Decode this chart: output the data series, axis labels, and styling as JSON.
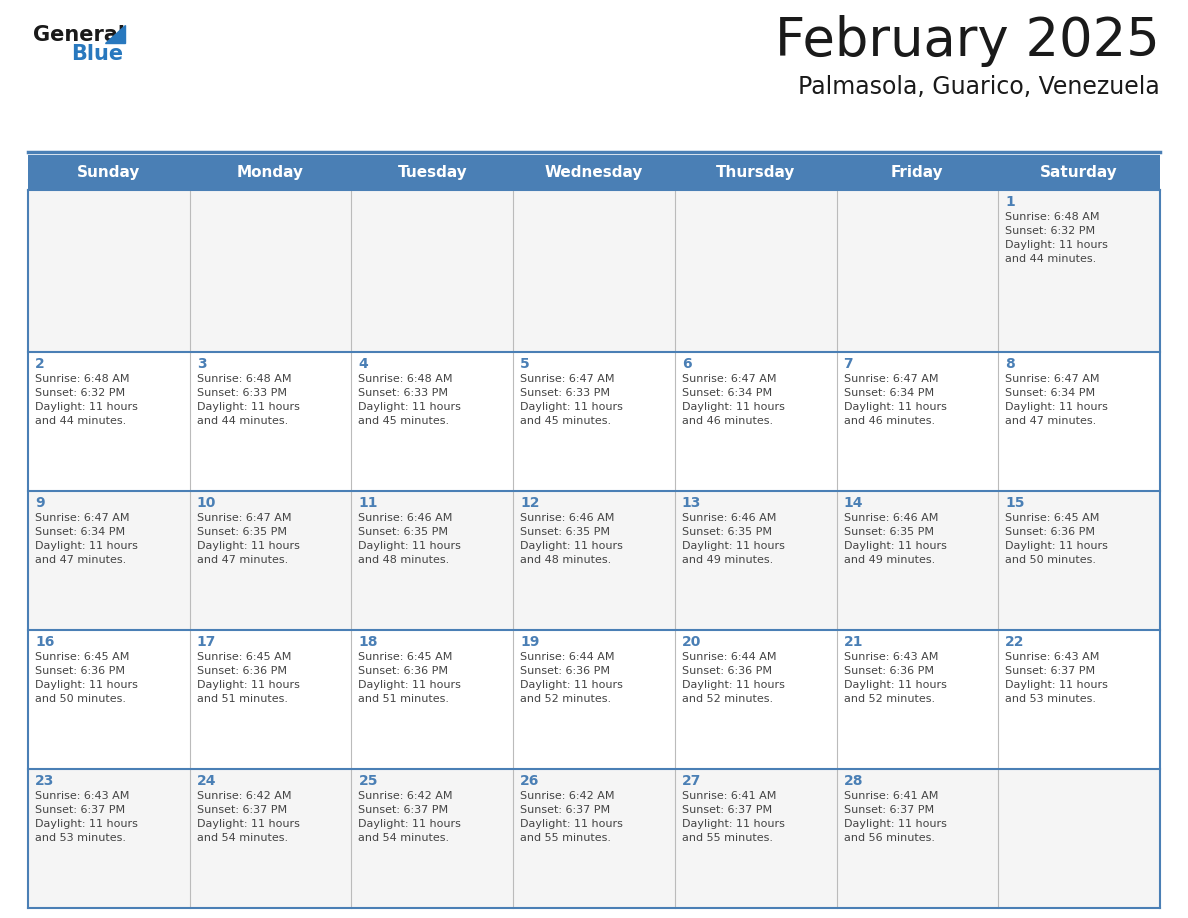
{
  "title": "February 2025",
  "subtitle": "Palmasola, Guarico, Venezuela",
  "days_of_week": [
    "Sunday",
    "Monday",
    "Tuesday",
    "Wednesday",
    "Thursday",
    "Friday",
    "Saturday"
  ],
  "header_bg": "#4a7fb5",
  "header_text": "#FFFFFF",
  "cell_bg": "#FFFFFF",
  "row_border_color": "#4a7fb5",
  "col_border_color": "#cccccc",
  "day_num_color": "#4a7fb5",
  "info_color": "#444444",
  "title_color": "#1a1a1a",
  "subtitle_color": "#1a1a1a",
  "logo_general_color": "#1a1a1a",
  "logo_blue_color": "#2878BE",
  "fig_width": 11.88,
  "fig_height": 9.18,
  "dpi": 100,
  "weeks": [
    [
      {
        "day": null,
        "info": ""
      },
      {
        "day": null,
        "info": ""
      },
      {
        "day": null,
        "info": ""
      },
      {
        "day": null,
        "info": ""
      },
      {
        "day": null,
        "info": ""
      },
      {
        "day": null,
        "info": ""
      },
      {
        "day": 1,
        "info": "Sunrise: 6:48 AM\nSunset: 6:32 PM\nDaylight: 11 hours\nand 44 minutes."
      }
    ],
    [
      {
        "day": 2,
        "info": "Sunrise: 6:48 AM\nSunset: 6:32 PM\nDaylight: 11 hours\nand 44 minutes."
      },
      {
        "day": 3,
        "info": "Sunrise: 6:48 AM\nSunset: 6:33 PM\nDaylight: 11 hours\nand 44 minutes."
      },
      {
        "day": 4,
        "info": "Sunrise: 6:48 AM\nSunset: 6:33 PM\nDaylight: 11 hours\nand 45 minutes."
      },
      {
        "day": 5,
        "info": "Sunrise: 6:47 AM\nSunset: 6:33 PM\nDaylight: 11 hours\nand 45 minutes."
      },
      {
        "day": 6,
        "info": "Sunrise: 6:47 AM\nSunset: 6:34 PM\nDaylight: 11 hours\nand 46 minutes."
      },
      {
        "day": 7,
        "info": "Sunrise: 6:47 AM\nSunset: 6:34 PM\nDaylight: 11 hours\nand 46 minutes."
      },
      {
        "day": 8,
        "info": "Sunrise: 6:47 AM\nSunset: 6:34 PM\nDaylight: 11 hours\nand 47 minutes."
      }
    ],
    [
      {
        "day": 9,
        "info": "Sunrise: 6:47 AM\nSunset: 6:34 PM\nDaylight: 11 hours\nand 47 minutes."
      },
      {
        "day": 10,
        "info": "Sunrise: 6:47 AM\nSunset: 6:35 PM\nDaylight: 11 hours\nand 47 minutes."
      },
      {
        "day": 11,
        "info": "Sunrise: 6:46 AM\nSunset: 6:35 PM\nDaylight: 11 hours\nand 48 minutes."
      },
      {
        "day": 12,
        "info": "Sunrise: 6:46 AM\nSunset: 6:35 PM\nDaylight: 11 hours\nand 48 minutes."
      },
      {
        "day": 13,
        "info": "Sunrise: 6:46 AM\nSunset: 6:35 PM\nDaylight: 11 hours\nand 49 minutes."
      },
      {
        "day": 14,
        "info": "Sunrise: 6:46 AM\nSunset: 6:35 PM\nDaylight: 11 hours\nand 49 minutes."
      },
      {
        "day": 15,
        "info": "Sunrise: 6:45 AM\nSunset: 6:36 PM\nDaylight: 11 hours\nand 50 minutes."
      }
    ],
    [
      {
        "day": 16,
        "info": "Sunrise: 6:45 AM\nSunset: 6:36 PM\nDaylight: 11 hours\nand 50 minutes."
      },
      {
        "day": 17,
        "info": "Sunrise: 6:45 AM\nSunset: 6:36 PM\nDaylight: 11 hours\nand 51 minutes."
      },
      {
        "day": 18,
        "info": "Sunrise: 6:45 AM\nSunset: 6:36 PM\nDaylight: 11 hours\nand 51 minutes."
      },
      {
        "day": 19,
        "info": "Sunrise: 6:44 AM\nSunset: 6:36 PM\nDaylight: 11 hours\nand 52 minutes."
      },
      {
        "day": 20,
        "info": "Sunrise: 6:44 AM\nSunset: 6:36 PM\nDaylight: 11 hours\nand 52 minutes."
      },
      {
        "day": 21,
        "info": "Sunrise: 6:43 AM\nSunset: 6:36 PM\nDaylight: 11 hours\nand 52 minutes."
      },
      {
        "day": 22,
        "info": "Sunrise: 6:43 AM\nSunset: 6:37 PM\nDaylight: 11 hours\nand 53 minutes."
      }
    ],
    [
      {
        "day": 23,
        "info": "Sunrise: 6:43 AM\nSunset: 6:37 PM\nDaylight: 11 hours\nand 53 minutes."
      },
      {
        "day": 24,
        "info": "Sunrise: 6:42 AM\nSunset: 6:37 PM\nDaylight: 11 hours\nand 54 minutes."
      },
      {
        "day": 25,
        "info": "Sunrise: 6:42 AM\nSunset: 6:37 PM\nDaylight: 11 hours\nand 54 minutes."
      },
      {
        "day": 26,
        "info": "Sunrise: 6:42 AM\nSunset: 6:37 PM\nDaylight: 11 hours\nand 55 minutes."
      },
      {
        "day": 27,
        "info": "Sunrise: 6:41 AM\nSunset: 6:37 PM\nDaylight: 11 hours\nand 55 minutes."
      },
      {
        "day": 28,
        "info": "Sunrise: 6:41 AM\nSunset: 6:37 PM\nDaylight: 11 hours\nand 56 minutes."
      },
      {
        "day": null,
        "info": ""
      }
    ]
  ]
}
